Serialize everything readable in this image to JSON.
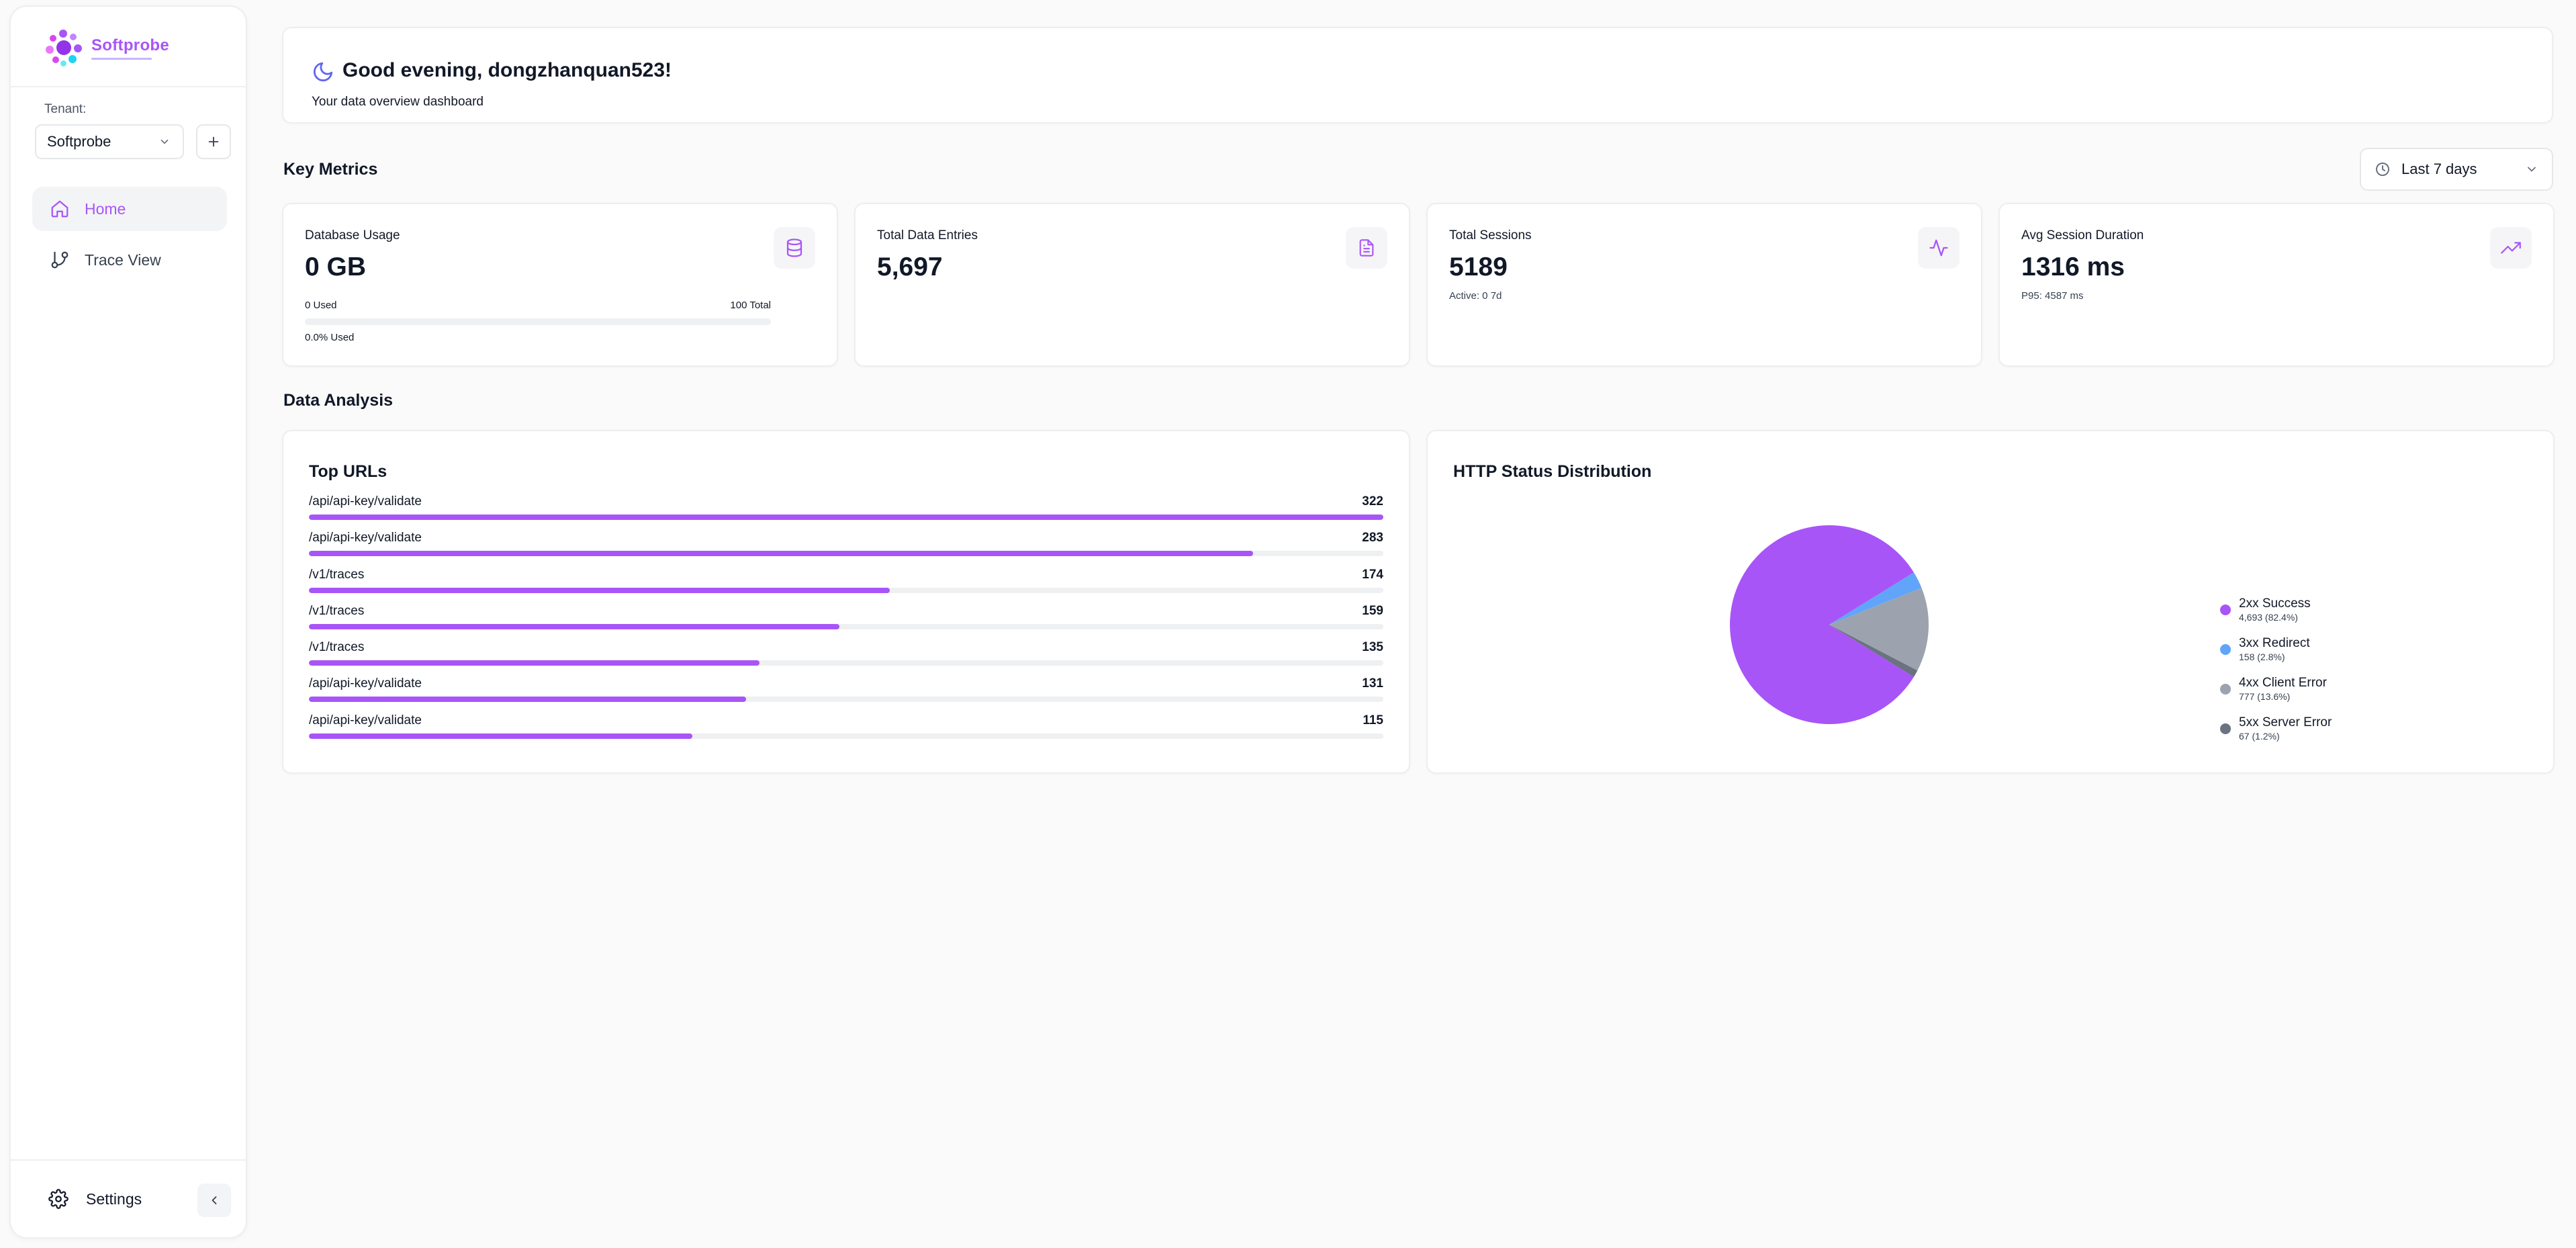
{
  "sidebar": {
    "brand": "Softprobe",
    "tenant_label": "Tenant:",
    "tenant_value": "Softprobe",
    "nav": [
      {
        "label": "Home",
        "icon": "home-icon",
        "active": true
      },
      {
        "label": "Trace View",
        "icon": "git-branch-icon",
        "active": false
      }
    ],
    "settings_label": "Settings"
  },
  "header": {
    "greeting": "Good evening, dongzhanquan523!",
    "subtitle": "Your data overview dashboard"
  },
  "key_metrics": {
    "title": "Key Metrics",
    "range": "Last 7 days",
    "cards": {
      "db": {
        "label": "Database Usage",
        "value": "0 GB",
        "used": "0 Used",
        "total": "100 Total",
        "pct_text": "0.0% Used",
        "pct": 0.0,
        "icon": "database-icon"
      },
      "entries": {
        "label": "Total Data Entries",
        "value": "5,697",
        "icon": "document-icon"
      },
      "sessions": {
        "label": "Total Sessions",
        "value": "5189",
        "sub": "Active: 0 7d",
        "icon": "activity-icon"
      },
      "duration": {
        "label": "Avg Session Duration",
        "value": "1316 ms",
        "sub": "P95: 4587 ms",
        "icon": "trending-up-icon"
      }
    }
  },
  "data_analysis": {
    "title": "Data Analysis",
    "top_urls": {
      "title": "Top URLs",
      "rows": [
        {
          "url": "/api/api-key/validate",
          "count": "322"
        },
        {
          "url": "/api/api-key/validate",
          "count": "283"
        },
        {
          "url": "/v1/traces",
          "count": "174"
        },
        {
          "url": "/v1/traces",
          "count": "159"
        },
        {
          "url": "/v1/traces",
          "count": "135"
        },
        {
          "url": "/api/api-key/validate",
          "count": "131"
        },
        {
          "url": "/api/api-key/validate",
          "count": "115"
        }
      ]
    },
    "http_status": {
      "title": "HTTP Status Distribution",
      "legend": [
        {
          "name": "2xx Success",
          "detail": "4,693 (82.4%)",
          "color": "#a855f7"
        },
        {
          "name": "3xx Redirect",
          "detail": "158 (2.8%)",
          "color": "#60a5fa"
        },
        {
          "name": "4xx Client Error",
          "detail": "777 (13.6%)",
          "color": "#9ca3af"
        },
        {
          "name": "5xx Server Error",
          "detail": "67 (1.2%)",
          "color": "#6b7280"
        }
      ]
    }
  },
  "chart_data": [
    {
      "type": "bar",
      "title": "Top URLs",
      "categories": [
        "/api/api-key/validate",
        "/api/api-key/validate",
        "/v1/traces",
        "/v1/traces",
        "/v1/traces",
        "/api/api-key/validate",
        "/api/api-key/validate"
      ],
      "values": [
        322,
        283,
        174,
        159,
        135,
        131,
        115
      ],
      "xlim": [
        0,
        322
      ]
    },
    {
      "type": "pie",
      "title": "HTTP Status Distribution",
      "categories": [
        "2xx Success",
        "3xx Redirect",
        "4xx Client Error",
        "5xx Server Error"
      ],
      "values": [
        4693,
        158,
        777,
        67
      ],
      "percent": [
        82.4,
        2.8,
        13.6,
        1.2
      ],
      "colors": [
        "#a855f7",
        "#60a5fa",
        "#9ca3af",
        "#6b7280"
      ],
      "legend": "right"
    }
  ]
}
